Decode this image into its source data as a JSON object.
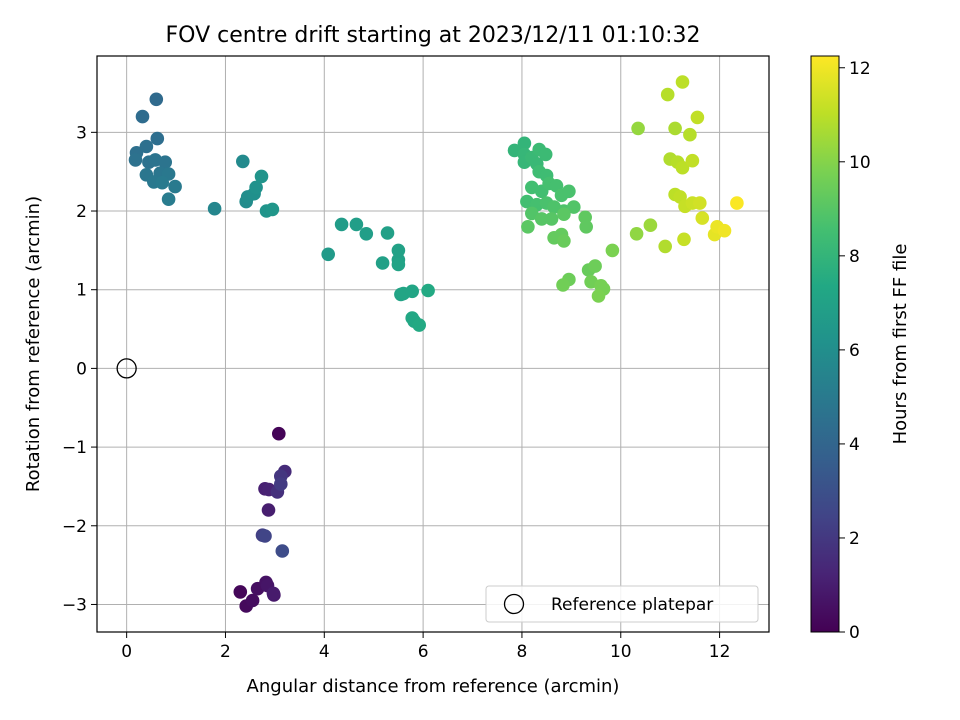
{
  "chart_data": {
    "type": "scatter",
    "title": "FOV centre drift starting at 2023/12/11 01:10:32",
    "xlabel": "Angular distance from reference (arcmin)",
    "ylabel": "Rotation from reference (arcmin)",
    "xlim": [
      -0.6,
      13.0
    ],
    "ylim": [
      -3.35,
      3.97
    ],
    "xticks": [
      0,
      2,
      4,
      6,
      8,
      10,
      12
    ],
    "yticks": [
      -3,
      -2,
      -1,
      0,
      1,
      2,
      3
    ],
    "grid": true,
    "legend": {
      "position": "lower-right",
      "entries": [
        "Reference platepar"
      ]
    },
    "reference_point": {
      "x": 0,
      "y": 0
    },
    "colorbar": {
      "label": "Hours from first FF file",
      "colormap": "viridis",
      "range": [
        0,
        12.25
      ],
      "ticks": [
        0,
        2,
        4,
        6,
        8,
        10,
        12
      ]
    },
    "points": [
      {
        "x": 3.08,
        "y": -0.83,
        "h": 0.1
      },
      {
        "x": 2.3,
        "y": -2.84,
        "h": 0.2
      },
      {
        "x": 2.42,
        "y": -3.02,
        "h": 0.3
      },
      {
        "x": 2.55,
        "y": -2.95,
        "h": 0.4
      },
      {
        "x": 2.65,
        "y": -2.8,
        "h": 0.5
      },
      {
        "x": 2.82,
        "y": -2.72,
        "h": 0.6
      },
      {
        "x": 2.85,
        "y": -2.76,
        "h": 0.7
      },
      {
        "x": 2.98,
        "y": -2.88,
        "h": 0.8
      },
      {
        "x": 2.97,
        "y": -2.86,
        "h": 0.9
      },
      {
        "x": 2.87,
        "y": -1.8,
        "h": 1.0
      },
      {
        "x": 2.8,
        "y": -1.53,
        "h": 1.1
      },
      {
        "x": 2.88,
        "y": -1.54,
        "h": 1.2
      },
      {
        "x": 3.2,
        "y": -1.31,
        "h": 1.5
      },
      {
        "x": 3.05,
        "y": -1.57,
        "h": 1.7
      },
      {
        "x": 3.12,
        "y": -1.37,
        "h": 1.9
      },
      {
        "x": 3.12,
        "y": -1.47,
        "h": 2.1
      },
      {
        "x": 2.75,
        "y": -2.12,
        "h": 2.3
      },
      {
        "x": 2.8,
        "y": -2.13,
        "h": 2.5
      },
      {
        "x": 3.15,
        "y": -2.32,
        "h": 2.8
      },
      {
        "x": 0.6,
        "y": 3.42,
        "h": 4.2
      },
      {
        "x": 0.32,
        "y": 3.2,
        "h": 4.3
      },
      {
        "x": 0.62,
        "y": 2.92,
        "h": 4.4
      },
      {
        "x": 0.4,
        "y": 2.82,
        "h": 4.5
      },
      {
        "x": 0.2,
        "y": 2.74,
        "h": 4.5
      },
      {
        "x": 0.18,
        "y": 2.65,
        "h": 4.6
      },
      {
        "x": 0.45,
        "y": 2.62,
        "h": 4.6
      },
      {
        "x": 0.58,
        "y": 2.65,
        "h": 4.7
      },
      {
        "x": 0.78,
        "y": 2.62,
        "h": 4.7
      },
      {
        "x": 0.4,
        "y": 2.46,
        "h": 4.8
      },
      {
        "x": 0.68,
        "y": 2.48,
        "h": 4.8
      },
      {
        "x": 0.85,
        "y": 2.47,
        "h": 4.9
      },
      {
        "x": 0.55,
        "y": 2.37,
        "h": 4.9
      },
      {
        "x": 0.72,
        "y": 2.36,
        "h": 5.0
      },
      {
        "x": 0.98,
        "y": 2.31,
        "h": 5.0
      },
      {
        "x": 0.85,
        "y": 2.15,
        "h": 5.1
      },
      {
        "x": 1.78,
        "y": 2.03,
        "h": 5.6
      },
      {
        "x": 2.35,
        "y": 2.63,
        "h": 5.8
      },
      {
        "x": 2.42,
        "y": 2.12,
        "h": 5.9
      },
      {
        "x": 2.45,
        "y": 2.18,
        "h": 6.0
      },
      {
        "x": 2.58,
        "y": 2.22,
        "h": 6.1
      },
      {
        "x": 2.62,
        "y": 2.3,
        "h": 6.2
      },
      {
        "x": 2.73,
        "y": 2.44,
        "h": 6.3
      },
      {
        "x": 2.83,
        "y": 2.0,
        "h": 6.3
      },
      {
        "x": 2.95,
        "y": 2.02,
        "h": 6.4
      },
      {
        "x": 4.08,
        "y": 1.45,
        "h": 6.6
      },
      {
        "x": 4.35,
        "y": 1.83,
        "h": 6.7
      },
      {
        "x": 4.65,
        "y": 1.83,
        "h": 6.8
      },
      {
        "x": 4.85,
        "y": 1.71,
        "h": 6.8
      },
      {
        "x": 5.18,
        "y": 1.34,
        "h": 6.9
      },
      {
        "x": 5.28,
        "y": 1.72,
        "h": 6.9
      },
      {
        "x": 5.5,
        "y": 1.5,
        "h": 7.0
      },
      {
        "x": 5.5,
        "y": 1.38,
        "h": 7.0
      },
      {
        "x": 5.5,
        "y": 1.32,
        "h": 7.1
      },
      {
        "x": 5.55,
        "y": 0.94,
        "h": 7.1
      },
      {
        "x": 5.6,
        "y": 0.95,
        "h": 7.2
      },
      {
        "x": 5.78,
        "y": 0.98,
        "h": 7.2
      },
      {
        "x": 5.78,
        "y": 0.64,
        "h": 7.3
      },
      {
        "x": 5.82,
        "y": 0.6,
        "h": 7.3
      },
      {
        "x": 5.92,
        "y": 0.55,
        "h": 7.4
      },
      {
        "x": 6.1,
        "y": 0.99,
        "h": 7.4
      },
      {
        "x": 7.85,
        "y": 2.77,
        "h": 8.0
      },
      {
        "x": 8.05,
        "y": 2.86,
        "h": 8.0
      },
      {
        "x": 8.05,
        "y": 2.72,
        "h": 8.1
      },
      {
        "x": 8.05,
        "y": 2.62,
        "h": 8.1
      },
      {
        "x": 8.2,
        "y": 2.68,
        "h": 8.2
      },
      {
        "x": 8.3,
        "y": 2.6,
        "h": 8.2
      },
      {
        "x": 8.35,
        "y": 2.78,
        "h": 8.3
      },
      {
        "x": 8.48,
        "y": 2.72,
        "h": 8.3
      },
      {
        "x": 8.35,
        "y": 2.5,
        "h": 8.4
      },
      {
        "x": 8.5,
        "y": 2.45,
        "h": 8.4
      },
      {
        "x": 8.2,
        "y": 2.3,
        "h": 8.5
      },
      {
        "x": 8.4,
        "y": 2.25,
        "h": 8.5
      },
      {
        "x": 8.55,
        "y": 2.35,
        "h": 8.6
      },
      {
        "x": 8.7,
        "y": 2.32,
        "h": 8.6
      },
      {
        "x": 8.8,
        "y": 2.2,
        "h": 8.7
      },
      {
        "x": 8.95,
        "y": 2.25,
        "h": 8.7
      },
      {
        "x": 8.1,
        "y": 2.12,
        "h": 8.5
      },
      {
        "x": 8.3,
        "y": 2.08,
        "h": 8.6
      },
      {
        "x": 8.5,
        "y": 2.1,
        "h": 8.7
      },
      {
        "x": 8.65,
        "y": 2.05,
        "h": 8.8
      },
      {
        "x": 8.85,
        "y": 2.0,
        "h": 8.8
      },
      {
        "x": 9.05,
        "y": 2.05,
        "h": 8.9
      },
      {
        "x": 8.2,
        "y": 1.97,
        "h": 8.9
      },
      {
        "x": 8.4,
        "y": 1.9,
        "h": 9.0
      },
      {
        "x": 8.6,
        "y": 1.9,
        "h": 9.0
      },
      {
        "x": 8.85,
        "y": 1.96,
        "h": 9.1
      },
      {
        "x": 8.12,
        "y": 1.8,
        "h": 9.1
      },
      {
        "x": 9.28,
        "y": 1.92,
        "h": 9.2
      },
      {
        "x": 9.3,
        "y": 1.8,
        "h": 9.2
      },
      {
        "x": 8.65,
        "y": 1.66,
        "h": 9.3
      },
      {
        "x": 8.8,
        "y": 1.7,
        "h": 9.3
      },
      {
        "x": 8.85,
        "y": 1.62,
        "h": 9.4
      },
      {
        "x": 9.35,
        "y": 1.25,
        "h": 9.4
      },
      {
        "x": 9.48,
        "y": 1.3,
        "h": 9.5
      },
      {
        "x": 8.95,
        "y": 1.13,
        "h": 9.5
      },
      {
        "x": 8.83,
        "y": 1.06,
        "h": 9.6
      },
      {
        "x": 9.4,
        "y": 1.1,
        "h": 9.6
      },
      {
        "x": 9.6,
        "y": 1.05,
        "h": 9.7
      },
      {
        "x": 9.65,
        "y": 1.01,
        "h": 9.7
      },
      {
        "x": 9.55,
        "y": 0.92,
        "h": 9.8
      },
      {
        "x": 9.83,
        "y": 1.5,
        "h": 9.8
      },
      {
        "x": 10.35,
        "y": 3.05,
        "h": 10.3
      },
      {
        "x": 10.32,
        "y": 1.71,
        "h": 10.2
      },
      {
        "x": 10.6,
        "y": 1.82,
        "h": 10.4
      },
      {
        "x": 10.95,
        "y": 3.48,
        "h": 10.9
      },
      {
        "x": 11.25,
        "y": 3.64,
        "h": 11.0
      },
      {
        "x": 11.1,
        "y": 3.05,
        "h": 10.7
      },
      {
        "x": 11.4,
        "y": 2.97,
        "h": 10.9
      },
      {
        "x": 11.55,
        "y": 3.19,
        "h": 11.1
      },
      {
        "x": 11.0,
        "y": 2.66,
        "h": 10.8
      },
      {
        "x": 11.15,
        "y": 2.62,
        "h": 10.9
      },
      {
        "x": 11.25,
        "y": 2.55,
        "h": 11.0
      },
      {
        "x": 11.45,
        "y": 2.64,
        "h": 11.1
      },
      {
        "x": 11.1,
        "y": 2.21,
        "h": 11.0
      },
      {
        "x": 11.2,
        "y": 2.18,
        "h": 11.1
      },
      {
        "x": 11.3,
        "y": 2.06,
        "h": 11.2
      },
      {
        "x": 11.45,
        "y": 2.1,
        "h": 11.3
      },
      {
        "x": 11.6,
        "y": 2.1,
        "h": 11.4
      },
      {
        "x": 11.65,
        "y": 1.91,
        "h": 11.5
      },
      {
        "x": 10.9,
        "y": 1.55,
        "h": 10.8
      },
      {
        "x": 11.28,
        "y": 1.64,
        "h": 11.2
      },
      {
        "x": 11.9,
        "y": 1.7,
        "h": 11.8
      },
      {
        "x": 11.95,
        "y": 1.8,
        "h": 11.9
      },
      {
        "x": 12.1,
        "y": 1.75,
        "h": 12.0
      },
      {
        "x": 12.35,
        "y": 2.1,
        "h": 12.2
      }
    ]
  }
}
